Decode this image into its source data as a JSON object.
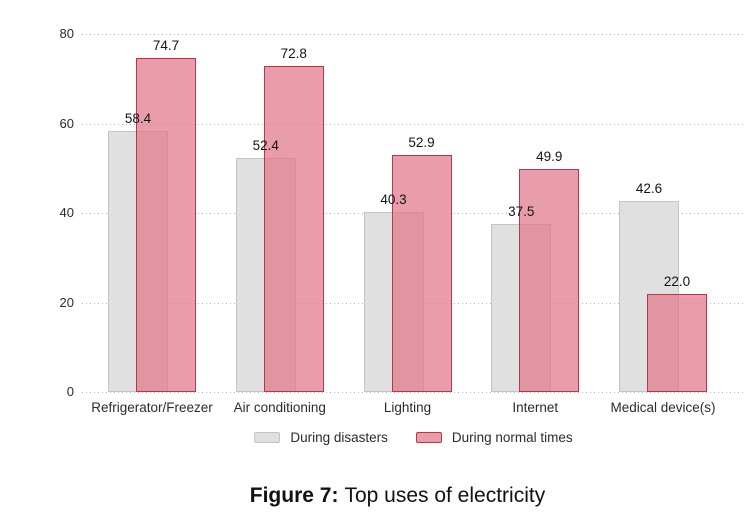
{
  "figure": {
    "caption_label": "Figure 7:",
    "caption_text": "Top uses of electricity"
  },
  "chart_data": {
    "type": "bar",
    "title": "Top uses of electricity",
    "xlabel": "",
    "ylabel": "",
    "categories": [
      "Refrigerator/Freezer",
      "Air conditioning",
      "Lighting",
      "Internet",
      "Medical device(s)"
    ],
    "series": [
      {
        "name": "During disasters",
        "values": [
          58.4,
          52.4,
          40.3,
          37.5,
          42.6
        ],
        "fill": "rgba(220,220,220,0.88)",
        "border": "#c4c4c4"
      },
      {
        "name": "During normal times",
        "values": [
          74.7,
          72.8,
          52.9,
          49.9,
          22.0
        ],
        "fill": "rgba(224,119,138,0.72)",
        "border": "#c13349"
      }
    ],
    "ylim": [
      0,
      80
    ],
    "yticks": [
      0,
      20,
      40,
      60,
      80
    ],
    "grid": "horizontal-dotted",
    "grid_color": "#b4b4b4",
    "bar_value_labels": true,
    "legend_position": "bottom",
    "legend": [
      "During disasters",
      "During normal times"
    ]
  }
}
